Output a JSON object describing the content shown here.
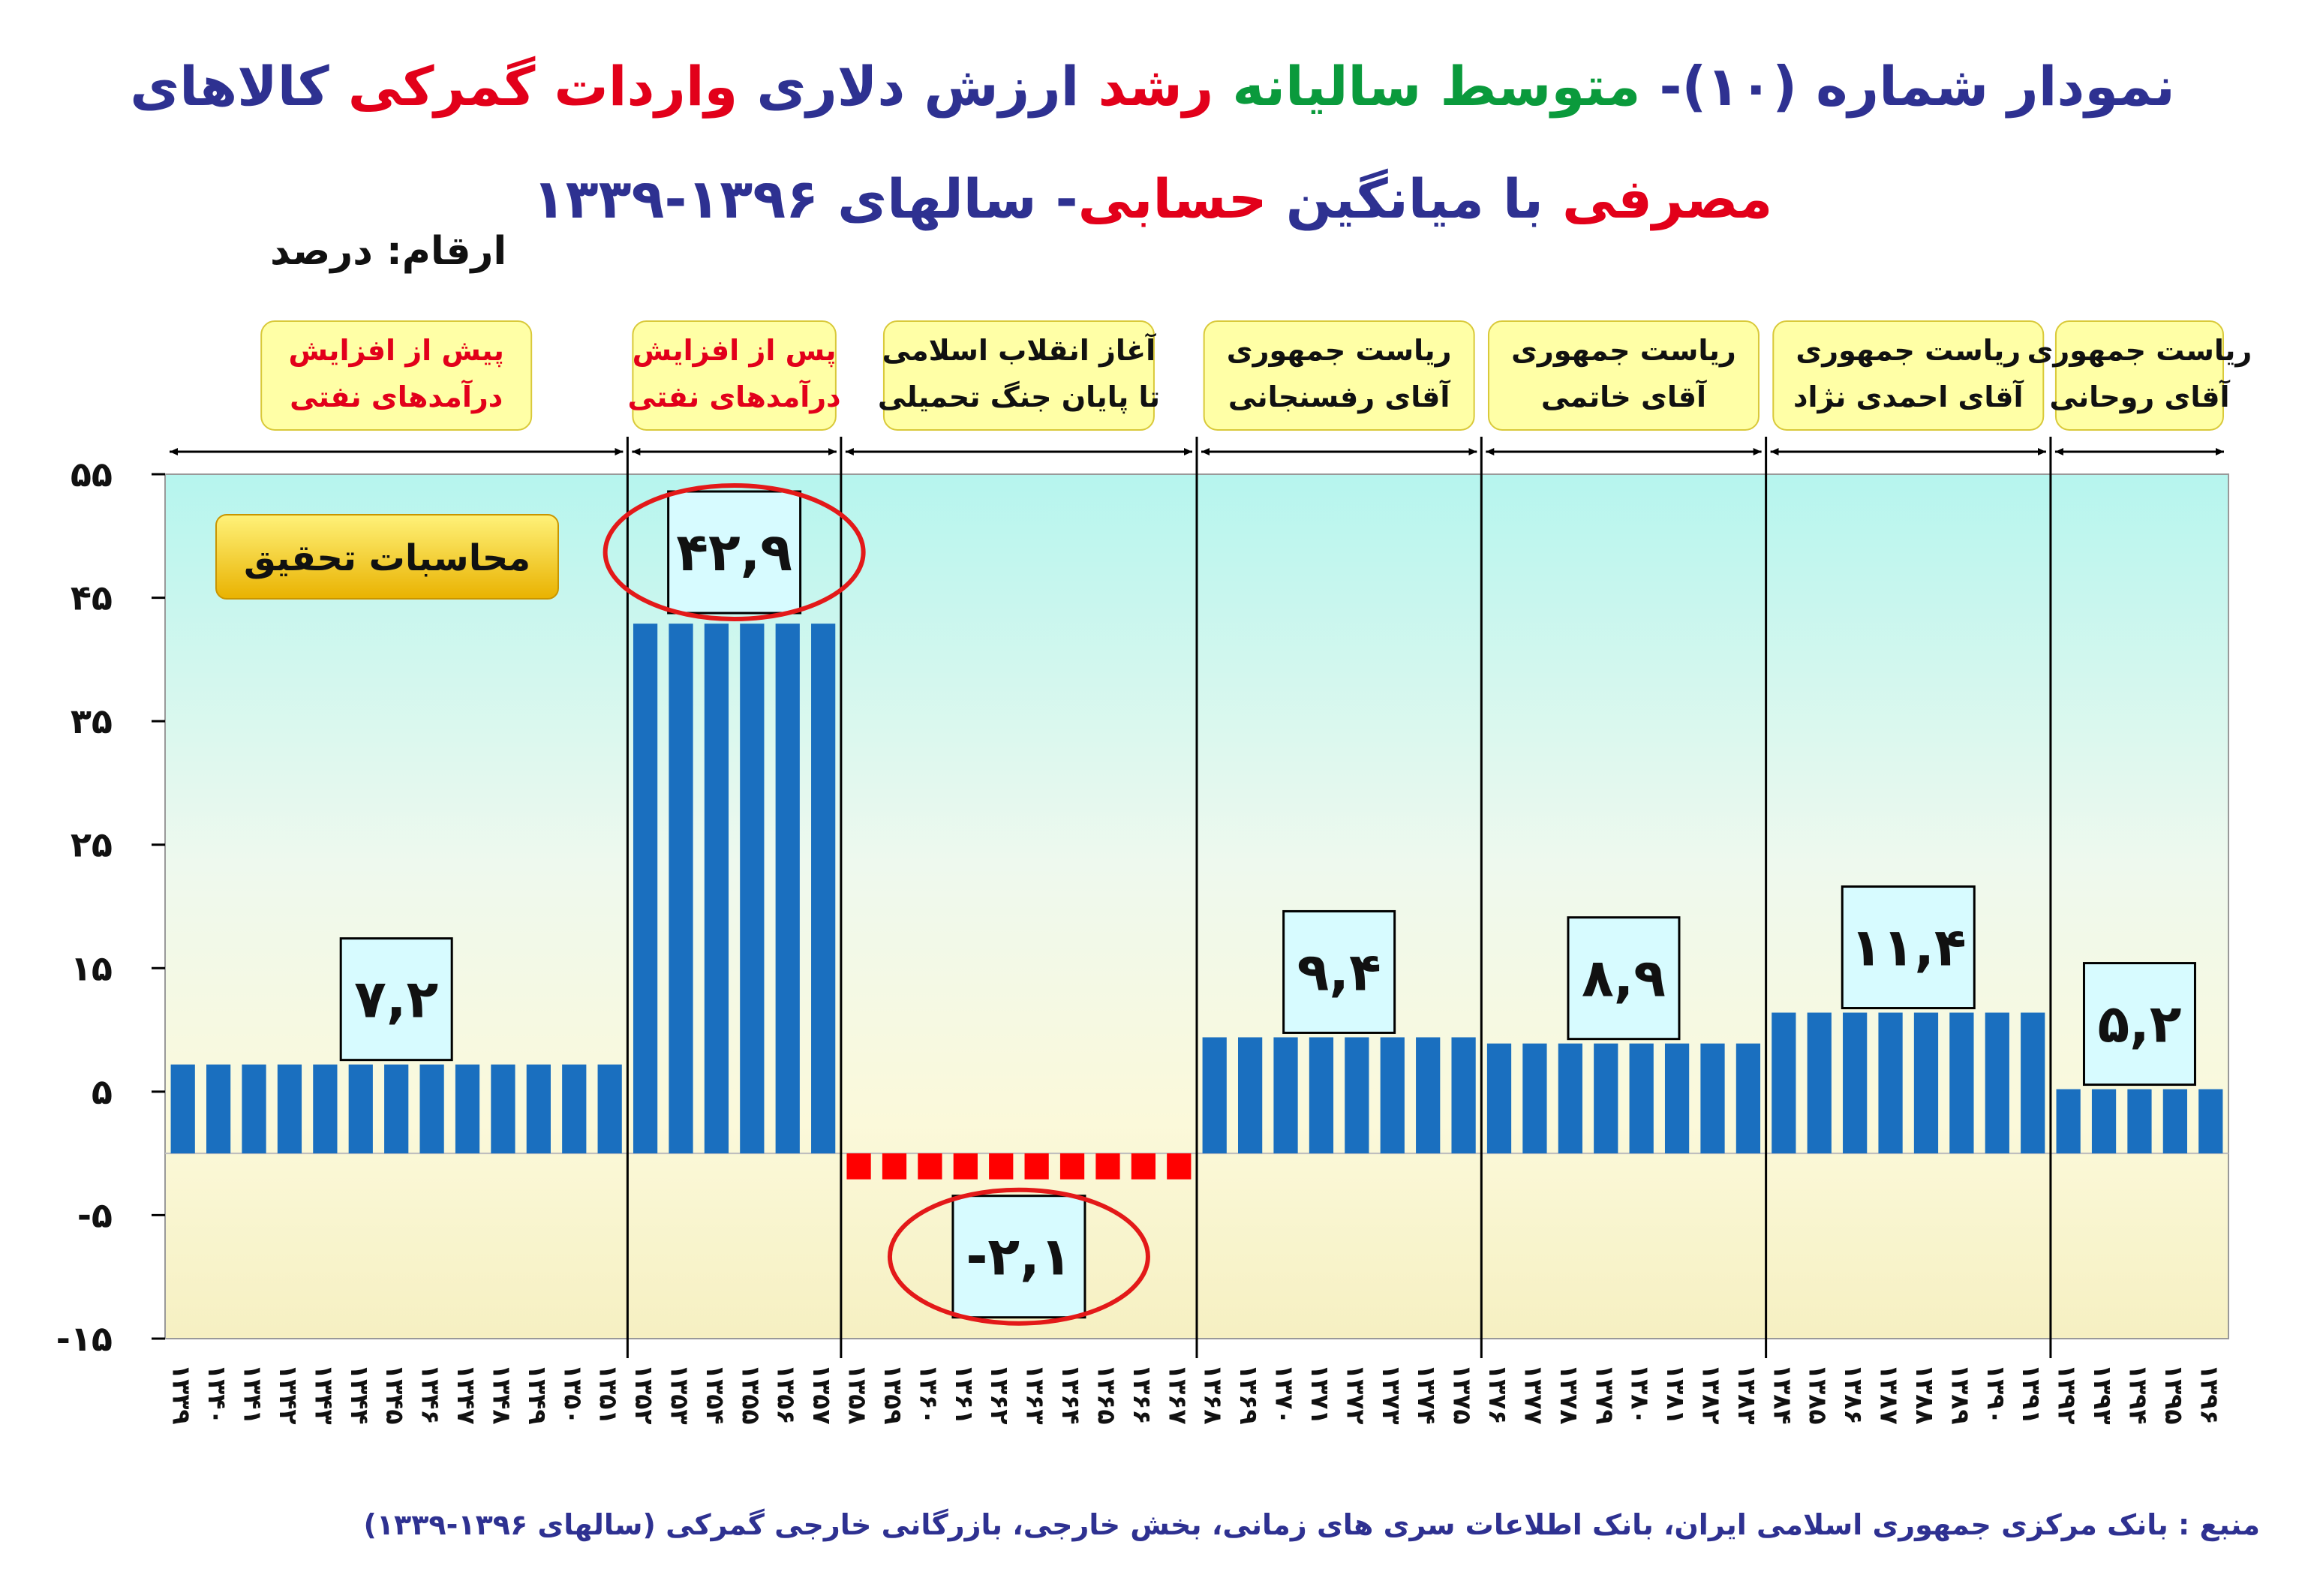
{
  "title": [
    {
      "text": "نمودار شماره (۱۰)- ",
      "color": "#2e3191"
    },
    {
      "text": "متوسط سالیانه",
      "color": "#0a9a3c"
    },
    {
      "text": " ",
      "color": "#2e3191"
    },
    {
      "text": "رشد",
      "color": "#e2001a"
    },
    {
      "text": " ارزش دلاری ",
      "color": "#2e3191"
    },
    {
      "text": "واردات گمرکی",
      "color": "#e2001a"
    },
    {
      "text": " کالاهای ",
      "color": "#2e3191"
    },
    {
      "text": "مصرفی",
      "color": "#e2001a"
    },
    {
      "text": " با میانگین ",
      "color": "#2e3191"
    },
    {
      "text": "حسابی",
      "color": "#e2001a"
    },
    {
      "text": "- سالهای ۱۳۹۶-۱۳۳۹",
      "color": "#2e3191"
    }
  ],
  "unit_label": "ارقام: درصد",
  "badge_label": "محاسبات تحقیق",
  "source": "منبع : بانک مرکزی جمهوری اسلامی ایران، بانک اطلاعات سری های زمانی، بخش خارجی، بازرگانی خارجی گمرکی (سالهای ۱۳۹۶-۱۳۳۹)",
  "colors": {
    "positive": "#1a6fbf",
    "negative": "#ff0000",
    "label_box": "#d7fbff",
    "period_box": "#ffffa6",
    "circle": "#e31919",
    "axis_text": "#111111"
  },
  "chart_data": {
    "type": "bar",
    "ylim": [
      -15,
      55
    ],
    "yticks": [
      55,
      45,
      35,
      25,
      15,
      5,
      -5,
      -15
    ],
    "ytick_labels": [
      "۵۵",
      "۴۵",
      "۳۵",
      "۲۵",
      "۱۵",
      "۵",
      "-۵",
      "-۱۵"
    ],
    "xlabel": "",
    "ylabel": "",
    "grid": false,
    "periods": [
      {
        "label": [
          "پیش از افزایش",
          "درآمدهای نفتی"
        ],
        "label_color": "#e2001a",
        "value": 7.2,
        "value_label": "۷,۲",
        "highlight": false,
        "years": [
          "۱۳۳۹",
          "۱۳۴۰",
          "۱۳۴۱",
          "۱۳۴۲",
          "۱۳۴۳",
          "۱۳۴۴",
          "۱۳۴۵",
          "۱۳۴۶",
          "۱۳۴۷",
          "۱۳۴۸",
          "۱۳۴۹",
          "۱۳۵۰",
          "۱۳۵۱"
        ]
      },
      {
        "label": [
          "پس از افزایش",
          "درآمدهای نفتی"
        ],
        "label_color": "#e2001a",
        "value": 42.9,
        "value_label": "۴۲,۹",
        "highlight": true,
        "years": [
          "۱۳۵۲",
          "۱۳۵۳",
          "۱۳۵۴",
          "۱۳۵۵",
          "۱۳۵۶",
          "۱۳۵۷"
        ]
      },
      {
        "label": [
          "آغاز انقلاب اسلامی",
          "تا پایان جنگ تحمیلی"
        ],
        "label_color": "#111111",
        "value": -2.1,
        "value_label": "-۲,۱",
        "highlight": true,
        "years": [
          "۱۳۵۸",
          "۱۳۵۹",
          "۱۳۶۰",
          "۱۳۶۱",
          "۱۳۶۲",
          "۱۳۶۳",
          "۱۳۶۴",
          "۱۳۶۵",
          "۱۳۶۶",
          "۱۳۶۷"
        ]
      },
      {
        "label": [
          "ریاست جمهوری",
          "آقای رفسنجانی"
        ],
        "label_color": "#111111",
        "value": 9.4,
        "value_label": "۹,۴",
        "highlight": false,
        "years": [
          "۱۳۶۸",
          "۱۳۶۹",
          "۱۳۷۰",
          "۱۳۷۱",
          "۱۳۷۲",
          "۱۳۷۳",
          "۱۳۷۴",
          "۱۳۷۵"
        ]
      },
      {
        "label": [
          "ریاست جمهوری",
          "آقای خاتمی"
        ],
        "label_color": "#111111",
        "value": 8.9,
        "value_label": "۸,۹",
        "highlight": false,
        "years": [
          "۱۳۷۶",
          "۱۳۷۷",
          "۱۳۷۸",
          "۱۳۷۹",
          "۱۳۸۰",
          "۱۳۸۱",
          "۱۳۸۲",
          "۱۳۸۳"
        ]
      },
      {
        "label": [
          "ریاست جمهوری",
          "آقای احمدی نژاد"
        ],
        "label_color": "#111111",
        "value": 11.4,
        "value_label": "۱۱,۴",
        "highlight": false,
        "years": [
          "۱۳۸۴",
          "۱۳۸۵",
          "۱۳۸۶",
          "۱۳۸۷",
          "۱۳۸۸",
          "۱۳۸۹",
          "۱۳۹۰",
          "۱۳۹۱"
        ]
      },
      {
        "label": [
          "ریاست جمهوری",
          "آقای روحانی"
        ],
        "label_color": "#111111",
        "value": 5.2,
        "value_label": "۵,۲",
        "highlight": false,
        "years": [
          "۱۳۹۲",
          "۱۳۹۳",
          "۱۳۹۴",
          "۱۳۹۵",
          "۱۳۹۶"
        ]
      }
    ]
  }
}
